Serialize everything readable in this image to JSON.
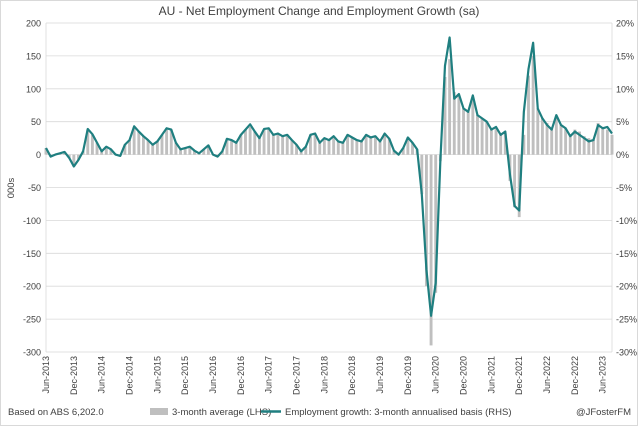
{
  "chart_data": {
    "type": "bar+line",
    "title": "AU - Net Employment Change and Employment Growth (sa)",
    "ylabel_left": "000s",
    "ylim_left": [
      -300,
      200
    ],
    "yticks_left": [
      "200",
      "150",
      "100",
      "50",
      "0",
      "-50",
      "-100",
      "-150",
      "-200",
      "-250",
      "-300"
    ],
    "ylim_right": [
      -30,
      20
    ],
    "yticks_right": [
      "20%",
      "15%",
      "10%",
      "5%",
      "0%",
      "-5%",
      "-10%",
      "-15%",
      "-20%",
      "-25%",
      "-30%"
    ],
    "x_tick_labels": [
      "Jun-2013",
      "Dec-2013",
      "Jun-2014",
      "Dec-2014",
      "Jun-2015",
      "Dec-2015",
      "Jun-2016",
      "Dec-2016",
      "Jun-2017",
      "Dec-2017",
      "Jun-2018",
      "Dec-2018",
      "Jun-2019",
      "Dec-2019",
      "Jun-2020",
      "Dec-2020",
      "Jun-2021",
      "Dec-2021",
      "Jun-2022",
      "Dec-2022",
      "Jun-2023"
    ],
    "x_start": "Jun-2013",
    "grid": true,
    "legend": "bottom",
    "series": [
      {
        "name": "3-month average (LHS)",
        "type": "bar",
        "color": "#bfbfbf",
        "values": [
          10,
          -3,
          0,
          2,
          4,
          -5,
          -18,
          -8,
          5,
          38,
          30,
          18,
          5,
          12,
          8,
          0,
          -2,
          15,
          22,
          42,
          35,
          28,
          22,
          15,
          20,
          30,
          40,
          38,
          18,
          8,
          10,
          12,
          6,
          2,
          8,
          14,
          0,
          -3,
          5,
          24,
          22,
          18,
          30,
          38,
          42,
          35,
          25,
          38,
          40,
          30,
          32,
          28,
          30,
          22,
          15,
          5,
          12,
          30,
          32,
          18,
          25,
          22,
          28,
          20,
          18,
          30,
          26,
          22,
          20,
          30,
          26,
          28,
          20,
          32,
          24,
          6,
          0,
          10,
          26,
          18,
          8,
          -60,
          -200,
          -290,
          -210,
          -10,
          118,
          145,
          95,
          90,
          70,
          65,
          85,
          60,
          55,
          50,
          40,
          42,
          30,
          32,
          -40,
          -80,
          -95,
          30,
          120,
          150,
          70,
          55,
          48,
          40,
          58,
          45,
          40,
          30,
          38,
          35,
          28,
          25,
          22,
          48,
          42,
          38,
          30
        ]
      },
      {
        "name": "Employment growth: 3-month annualised basis (RHS)",
        "type": "line",
        "color": "#1f7f80",
        "values": [
          1.0,
          -0.3,
          0.0,
          0.2,
          0.4,
          -0.5,
          -1.8,
          -0.8,
          0.5,
          3.9,
          3.1,
          1.8,
          0.5,
          1.2,
          0.8,
          0.0,
          -0.2,
          1.5,
          2.2,
          4.3,
          3.5,
          2.8,
          2.2,
          1.5,
          2.0,
          3.0,
          4.0,
          3.8,
          1.8,
          0.8,
          1.0,
          1.2,
          0.6,
          0.2,
          0.8,
          1.4,
          0.0,
          -0.3,
          0.5,
          2.4,
          2.2,
          1.8,
          3.0,
          3.8,
          4.6,
          3.5,
          2.5,
          3.9,
          4.0,
          3.0,
          3.2,
          2.8,
          3.0,
          2.2,
          1.5,
          0.5,
          1.2,
          3.0,
          3.2,
          1.8,
          2.5,
          2.2,
          2.8,
          2.0,
          1.8,
          3.0,
          2.6,
          2.2,
          2.0,
          3.0,
          2.6,
          2.8,
          2.0,
          3.2,
          2.4,
          0.6,
          0.0,
          1.0,
          2.6,
          1.8,
          0.8,
          -6.0,
          -17.5,
          -24.5,
          -19.5,
          -1.0,
          13.5,
          17.8,
          8.5,
          9.2,
          7.0,
          6.5,
          9.0,
          6.0,
          5.5,
          5.0,
          3.8,
          4.2,
          3.0,
          3.5,
          -3.0,
          -7.8,
          -8.5,
          6.5,
          13.0,
          17.0,
          7.0,
          5.5,
          4.5,
          3.8,
          6.0,
          4.5,
          4.0,
          2.8,
          3.5,
          3.0,
          2.5,
          2.0,
          2.2,
          4.5,
          4.0,
          4.2,
          3.2
        ]
      }
    ]
  },
  "footer": {
    "source": "Based on ABS 6,202.0",
    "credit": "@JFosterFM"
  },
  "colors": {
    "bar": "#bfbfbf",
    "line": "#1f7f80",
    "grid": "#d9d9d9",
    "text": "#404040"
  }
}
